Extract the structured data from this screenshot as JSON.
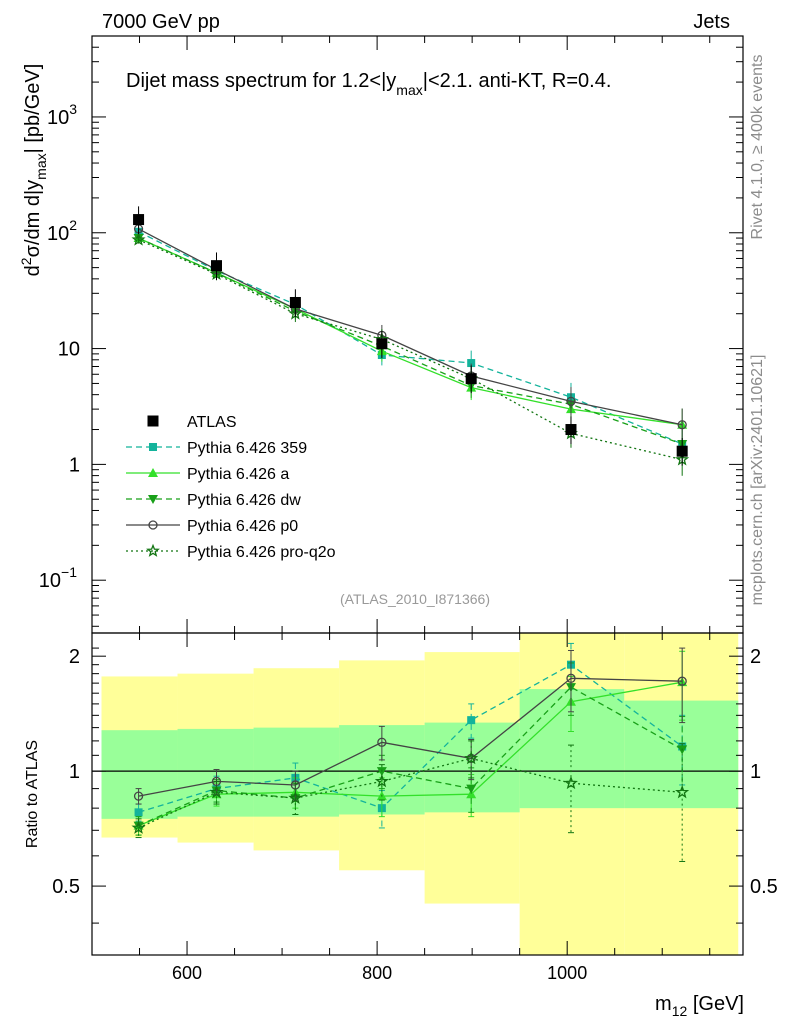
{
  "header": {
    "left": "7000 GeV pp",
    "right": "Jets"
  },
  "side_labels": {
    "rivet": "Rivet 4.1.0, ≥ 400k events",
    "mcplots": "mcplots.cern.ch [arXiv:2401.10621]"
  },
  "chart_data": {
    "type": "line",
    "title": "Dijet mass spectrum for 1.2<|ymax|<2.1.  anti-KT, R=0.4.",
    "title_parts": {
      "pre": "Dijet mass spectrum for 1.2<|y",
      "sub": "max",
      "post": "|<2.1.  anti-KT, R=0.4."
    },
    "analysis_id": "(ATLAS_2010_I871366)",
    "ylabel": "d2σ/dm d|ymax| [pb/GeV]",
    "ylabel_parts": {
      "a": "d",
      "sup": "2",
      "b": "σ/dm d|y",
      "sub": "max",
      "c": "| [pb/GeV]"
    },
    "ratio_ylabel": "Ratio to ATLAS",
    "xlabel": "m12 [GeV]",
    "xlabel_parts": {
      "a": "m",
      "sub": "12",
      "b": " [GeV]"
    },
    "xlim": [
      500,
      1185
    ],
    "ylim": [
      0.035,
      5000
    ],
    "yscale": "log",
    "ratio_ylim": [
      0.33,
      2.3
    ],
    "x_ticks": [
      600,
      800,
      1000
    ],
    "x_tick_labels": [
      "600",
      "800",
      "1000"
    ],
    "y_ticks": [
      {
        "value": 0.1,
        "base": "10",
        "exp": "−1"
      },
      {
        "value": 1,
        "base": "1",
        "exp": ""
      },
      {
        "value": 10,
        "base": "10",
        "exp": ""
      },
      {
        "value": 100,
        "base": "10",
        "exp": "2"
      },
      {
        "value": 1000,
        "base": "10",
        "exp": "3"
      }
    ],
    "ratio_ticks": [
      {
        "value": 0.5,
        "label": "0.5"
      },
      {
        "value": 1,
        "label": "1"
      },
      {
        "value": 2,
        "label": "2"
      }
    ],
    "bin_edges": [
      510,
      590,
      670,
      760,
      850,
      950,
      1060,
      1180
    ],
    "x": [
      549,
      631,
      714,
      805,
      899,
      1004,
      1121
    ],
    "atlas": {
      "name": "ATLAS",
      "values": [
        130,
        52,
        25,
        11,
        5.5,
        2.0,
        1.3
      ],
      "band_stat": [
        [
          0.75,
          1.28
        ],
        [
          0.76,
          1.29
        ],
        [
          0.76,
          1.3
        ],
        [
          0.77,
          1.32
        ],
        [
          0.78,
          1.34
        ],
        [
          0.8,
          1.64
        ],
        [
          0.8,
          1.53
        ]
      ],
      "band_total": [
        [
          0.67,
          1.77
        ],
        [
          0.65,
          1.8
        ],
        [
          0.62,
          1.86
        ],
        [
          0.55,
          1.95
        ],
        [
          0.45,
          2.05
        ],
        [
          0.3,
          2.3
        ],
        [
          0.3,
          2.3
        ]
      ]
    },
    "series": [
      {
        "name": "Pythia 6.426 359",
        "color": "#13b39b",
        "marker": "square",
        "dash": "6,4",
        "values": [
          102,
          47,
          24,
          8.8,
          7.5,
          3.8,
          1.5
        ],
        "ratio": [
          0.78,
          0.9,
          0.96,
          0.8,
          1.36,
          1.9,
          1.16
        ],
        "ratio_err": [
          0.04,
          0.07,
          0.09,
          0.09,
          0.14,
          0.26,
          0.24
        ]
      },
      {
        "name": "Pythia 6.426 a",
        "color": "#33e02a",
        "marker": "triangle-up",
        "dash": "",
        "values": [
          90,
          45,
          22,
          9.5,
          4.6,
          3.0,
          2.2
        ],
        "ratio": [
          0.72,
          0.87,
          0.88,
          0.86,
          0.87,
          1.52,
          1.71
        ],
        "ratio_err": [
          0.04,
          0.06,
          0.08,
          0.1,
          0.11,
          0.25,
          0.35
        ]
      },
      {
        "name": "Pythia 6.426 dw",
        "color": "#18a018",
        "marker": "triangle-down",
        "dash": "6,4",
        "values": [
          90,
          45,
          21,
          10.5,
          4.8,
          3.3,
          1.5
        ],
        "ratio": [
          0.72,
          0.89,
          0.85,
          1.0,
          0.9,
          1.66,
          1.14
        ],
        "ratio_err": [
          0.04,
          0.06,
          0.08,
          0.1,
          0.12,
          0.26,
          0.25
        ]
      },
      {
        "name": "Pythia 6.426 p0",
        "color": "#444444",
        "marker": "circle-open",
        "dash": "",
        "values": [
          108,
          48,
          22,
          13,
          5.8,
          3.5,
          2.2
        ],
        "ratio": [
          0.86,
          0.94,
          0.92,
          1.19,
          1.08,
          1.75,
          1.72
        ],
        "ratio_err": [
          0.04,
          0.07,
          0.08,
          0.12,
          0.13,
          0.32,
          0.38
        ]
      },
      {
        "name": "Pythia 6.426 pro-q2o",
        "color": "#127512",
        "marker": "star-open",
        "dash": "2,3",
        "values": [
          87,
          44,
          20,
          12,
          5.5,
          1.85,
          1.1
        ],
        "ratio": [
          0.71,
          0.88,
          0.85,
          0.94,
          1.08,
          0.93,
          0.88
        ],
        "ratio_err": [
          0.04,
          0.06,
          0.08,
          0.1,
          0.12,
          0.24,
          0.3
        ]
      }
    ]
  }
}
